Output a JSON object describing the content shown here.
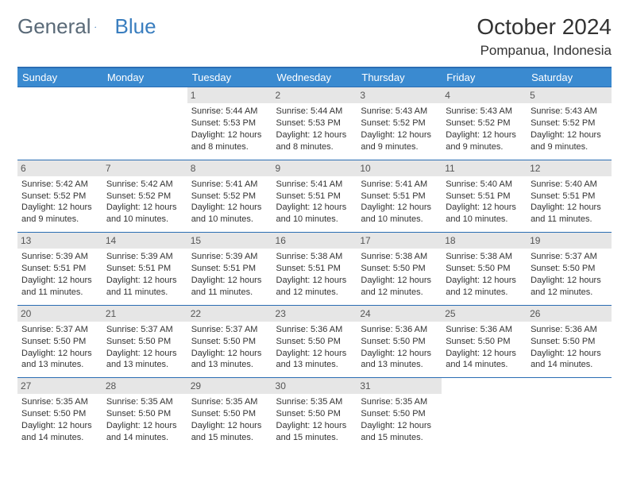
{
  "brand": {
    "word1": "General",
    "word2": "Blue"
  },
  "title": "October 2024",
  "location": "Pompanua, Indonesia",
  "layout": {
    "header_bg": "#3a8ad0",
    "border_color": "#2a6db3",
    "daynum_bg": "#e6e6e6",
    "font_size_cell": 11,
    "font_size_header": 13
  },
  "days_of_week": [
    "Sunday",
    "Monday",
    "Tuesday",
    "Wednesday",
    "Thursday",
    "Friday",
    "Saturday"
  ],
  "weeks": [
    [
      {
        "n": "",
        "empty": true
      },
      {
        "n": "",
        "empty": true
      },
      {
        "n": "1",
        "sr": "5:44 AM",
        "ss": "5:53 PM",
        "dl": "12 hours and 8 minutes."
      },
      {
        "n": "2",
        "sr": "5:44 AM",
        "ss": "5:53 PM",
        "dl": "12 hours and 8 minutes."
      },
      {
        "n": "3",
        "sr": "5:43 AM",
        "ss": "5:52 PM",
        "dl": "12 hours and 9 minutes."
      },
      {
        "n": "4",
        "sr": "5:43 AM",
        "ss": "5:52 PM",
        "dl": "12 hours and 9 minutes."
      },
      {
        "n": "5",
        "sr": "5:43 AM",
        "ss": "5:52 PM",
        "dl": "12 hours and 9 minutes."
      }
    ],
    [
      {
        "n": "6",
        "sr": "5:42 AM",
        "ss": "5:52 PM",
        "dl": "12 hours and 9 minutes."
      },
      {
        "n": "7",
        "sr": "5:42 AM",
        "ss": "5:52 PM",
        "dl": "12 hours and 10 minutes."
      },
      {
        "n": "8",
        "sr": "5:41 AM",
        "ss": "5:52 PM",
        "dl": "12 hours and 10 minutes."
      },
      {
        "n": "9",
        "sr": "5:41 AM",
        "ss": "5:51 PM",
        "dl": "12 hours and 10 minutes."
      },
      {
        "n": "10",
        "sr": "5:41 AM",
        "ss": "5:51 PM",
        "dl": "12 hours and 10 minutes."
      },
      {
        "n": "11",
        "sr": "5:40 AM",
        "ss": "5:51 PM",
        "dl": "12 hours and 10 minutes."
      },
      {
        "n": "12",
        "sr": "5:40 AM",
        "ss": "5:51 PM",
        "dl": "12 hours and 11 minutes."
      }
    ],
    [
      {
        "n": "13",
        "sr": "5:39 AM",
        "ss": "5:51 PM",
        "dl": "12 hours and 11 minutes."
      },
      {
        "n": "14",
        "sr": "5:39 AM",
        "ss": "5:51 PM",
        "dl": "12 hours and 11 minutes."
      },
      {
        "n": "15",
        "sr": "5:39 AM",
        "ss": "5:51 PM",
        "dl": "12 hours and 11 minutes."
      },
      {
        "n": "16",
        "sr": "5:38 AM",
        "ss": "5:51 PM",
        "dl": "12 hours and 12 minutes."
      },
      {
        "n": "17",
        "sr": "5:38 AM",
        "ss": "5:50 PM",
        "dl": "12 hours and 12 minutes."
      },
      {
        "n": "18",
        "sr": "5:38 AM",
        "ss": "5:50 PM",
        "dl": "12 hours and 12 minutes."
      },
      {
        "n": "19",
        "sr": "5:37 AM",
        "ss": "5:50 PM",
        "dl": "12 hours and 12 minutes."
      }
    ],
    [
      {
        "n": "20",
        "sr": "5:37 AM",
        "ss": "5:50 PM",
        "dl": "12 hours and 13 minutes."
      },
      {
        "n": "21",
        "sr": "5:37 AM",
        "ss": "5:50 PM",
        "dl": "12 hours and 13 minutes."
      },
      {
        "n": "22",
        "sr": "5:37 AM",
        "ss": "5:50 PM",
        "dl": "12 hours and 13 minutes."
      },
      {
        "n": "23",
        "sr": "5:36 AM",
        "ss": "5:50 PM",
        "dl": "12 hours and 13 minutes."
      },
      {
        "n": "24",
        "sr": "5:36 AM",
        "ss": "5:50 PM",
        "dl": "12 hours and 13 minutes."
      },
      {
        "n": "25",
        "sr": "5:36 AM",
        "ss": "5:50 PM",
        "dl": "12 hours and 14 minutes."
      },
      {
        "n": "26",
        "sr": "5:36 AM",
        "ss": "5:50 PM",
        "dl": "12 hours and 14 minutes."
      }
    ],
    [
      {
        "n": "27",
        "sr": "5:35 AM",
        "ss": "5:50 PM",
        "dl": "12 hours and 14 minutes."
      },
      {
        "n": "28",
        "sr": "5:35 AM",
        "ss": "5:50 PM",
        "dl": "12 hours and 14 minutes."
      },
      {
        "n": "29",
        "sr": "5:35 AM",
        "ss": "5:50 PM",
        "dl": "12 hours and 15 minutes."
      },
      {
        "n": "30",
        "sr": "5:35 AM",
        "ss": "5:50 PM",
        "dl": "12 hours and 15 minutes."
      },
      {
        "n": "31",
        "sr": "5:35 AM",
        "ss": "5:50 PM",
        "dl": "12 hours and 15 minutes."
      },
      {
        "n": "",
        "empty": true
      },
      {
        "n": "",
        "empty": true
      }
    ]
  ],
  "labels": {
    "sunrise": "Sunrise:",
    "sunset": "Sunset:",
    "daylight": "Daylight:"
  }
}
